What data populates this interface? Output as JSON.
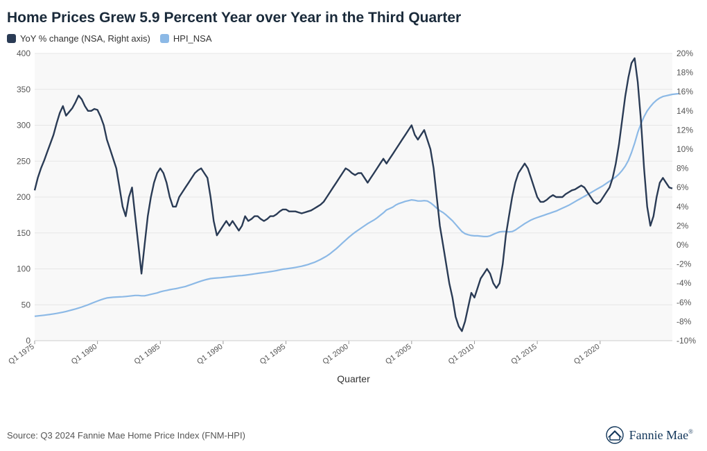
{
  "title": "Home Prices Grew 5.9 Percent Year over Year in the Third Quarter",
  "legend": {
    "series_a": {
      "label": "YoY % change (NSA, Right axis)",
      "color": "#2a3b55"
    },
    "series_b": {
      "label": "HPI_NSA",
      "color": "#8cb9e6"
    }
  },
  "chart": {
    "type": "line-dual-axis",
    "background_color": "#f8f8f8",
    "grid_color": "#e6e6e6",
    "font_color": "#555555",
    "x_axis": {
      "title": "Quarter",
      "ticks": [
        "Q1 1975",
        "Q1 1980",
        "Q1 1985",
        "Q1 1990",
        "Q1 1995",
        "Q1 2000",
        "Q1 2005",
        "Q1 2010",
        "Q1 2015",
        "Q1 2020"
      ],
      "min_idx": 0,
      "max_idx": 199
    },
    "y_left": {
      "min": 0,
      "max": 400,
      "step": 50,
      "ticks": [
        "0",
        "50",
        "100",
        "150",
        "200",
        "250",
        "300",
        "350",
        "400"
      ]
    },
    "y_right": {
      "min": -10,
      "max": 20,
      "step": 2,
      "ticks": [
        "-10%",
        "-8%",
        "-6%",
        "-4%",
        "-2%",
        "0%",
        "2%",
        "4%",
        "6%",
        "8%",
        "10%",
        "12%",
        "14%",
        "16%",
        "18%",
        "20%"
      ]
    },
    "series_yoy": {
      "color": "#2a3b55",
      "stroke_width": 2.4,
      "axis": "right",
      "values": [
        5.7,
        7.0,
        8.0,
        8.8,
        9.7,
        10.6,
        11.5,
        12.7,
        13.8,
        14.5,
        13.5,
        13.9,
        14.3,
        14.9,
        15.6,
        15.2,
        14.5,
        14.0,
        14.0,
        14.2,
        14.1,
        13.4,
        12.5,
        11.0,
        10.0,
        9.0,
        8.0,
        6.0,
        4.0,
        3.0,
        5.0,
        6.0,
        3.0,
        0.0,
        -3.0,
        0.0,
        3.0,
        5.0,
        6.5,
        7.5,
        8.0,
        7.5,
        6.5,
        5.0,
        4.0,
        4.0,
        5.0,
        5.5,
        6.0,
        6.5,
        7.0,
        7.5,
        7.8,
        8.0,
        7.5,
        7.0,
        5.0,
        2.5,
        1.0,
        1.5,
        2.0,
        2.5,
        2.0,
        2.5,
        2.0,
        1.5,
        2.0,
        3.0,
        2.5,
        2.7,
        3.0,
        3.0,
        2.7,
        2.5,
        2.7,
        3.0,
        3.0,
        3.2,
        3.5,
        3.7,
        3.7,
        3.5,
        3.5,
        3.5,
        3.4,
        3.3,
        3.4,
        3.5,
        3.6,
        3.8,
        4.0,
        4.2,
        4.5,
        5.0,
        5.5,
        6.0,
        6.5,
        7.0,
        7.5,
        8.0,
        7.8,
        7.5,
        7.3,
        7.5,
        7.5,
        7.0,
        6.5,
        7.0,
        7.5,
        8.0,
        8.5,
        9.0,
        8.5,
        9.0,
        9.5,
        10.0,
        10.5,
        11.0,
        11.5,
        12.0,
        12.5,
        11.5,
        11.0,
        11.5,
        12.0,
        11.0,
        10.0,
        8.0,
        5.0,
        2.0,
        0.0,
        -2.0,
        -4.0,
        -5.5,
        -7.5,
        -8.5,
        -9.0,
        -8.0,
        -6.5,
        -5.0,
        -5.5,
        -4.5,
        -3.5,
        -3.0,
        -2.5,
        -3.0,
        -4.0,
        -4.5,
        -4.0,
        -2.0,
        1.0,
        3.0,
        5.0,
        6.5,
        7.5,
        8.0,
        8.5,
        8.0,
        7.0,
        6.0,
        5.0,
        4.5,
        4.5,
        4.7,
        5.0,
        5.2,
        5.0,
        5.0,
        5.0,
        5.3,
        5.5,
        5.7,
        5.8,
        6.0,
        6.2,
        6.0,
        5.5,
        5.0,
        4.5,
        4.3,
        4.5,
        5.0,
        5.5,
        6.0,
        7.0,
        8.5,
        10.5,
        13.0,
        15.5,
        17.5,
        19.0,
        19.5,
        17.0,
        13.0,
        8.0,
        4.0,
        2.0,
        3.0,
        5.0,
        6.5,
        7.0,
        6.5,
        6.0,
        5.9
      ]
    },
    "series_hpi": {
      "color": "#8cb9e6",
      "stroke_width": 2.2,
      "axis": "left",
      "values": [
        34,
        34.5,
        35,
        35.5,
        36,
        36.6,
        37.3,
        38,
        38.8,
        39.7,
        40.7,
        41.8,
        43,
        44.2,
        45.5,
        46.9,
        48.4,
        50,
        51.8,
        53.5,
        55.2,
        56.8,
        58.3,
        59.5,
        60,
        60.5,
        60.8,
        61,
        61.2,
        61.5,
        62,
        62.5,
        63,
        63,
        62.5,
        62.5,
        63.5,
        64.5,
        65.5,
        66.5,
        68,
        69.2,
        70,
        71,
        71.8,
        72.5,
        73.5,
        74.5,
        75.5,
        77,
        78.5,
        80,
        81.5,
        83,
        84.3,
        85.5,
        86.5,
        87,
        87.3,
        87.6,
        88,
        88.5,
        89,
        89.5,
        90,
        90.4,
        90.7,
        91.2,
        91.8,
        92.4,
        93,
        93.7,
        94.3,
        94.9,
        95.5,
        96.1,
        96.8,
        97.6,
        98.5,
        99.5,
        100,
        100.6,
        101.3,
        102,
        102.8,
        103.7,
        104.8,
        106,
        107.5,
        109,
        111,
        113,
        115.5,
        118,
        121,
        124.5,
        128,
        132,
        136,
        140,
        144,
        147.5,
        151,
        154,
        157,
        160,
        163,
        165.5,
        168,
        171,
        174.5,
        178,
        182,
        184,
        186,
        189,
        191,
        192.5,
        194,
        195,
        196,
        195.5,
        194.5,
        194.5,
        195,
        194.5,
        192,
        188.5,
        184.5,
        181,
        178.5,
        175,
        171,
        167,
        162,
        157,
        152,
        149,
        147.5,
        146.5,
        146,
        146,
        145.5,
        145,
        145,
        146,
        148,
        150,
        151.5,
        152,
        152,
        151.5,
        152,
        154,
        157,
        160,
        163,
        165.5,
        168,
        170,
        171.5,
        173,
        174.5,
        176,
        177.5,
        179,
        180.5,
        182.5,
        184.5,
        186.5,
        188.5,
        191,
        193.5,
        196,
        198.5,
        201,
        203.5,
        206,
        208.5,
        211,
        213.5,
        216,
        219,
        222,
        225,
        228,
        232,
        237,
        243,
        251,
        262,
        275,
        290,
        302,
        312,
        320,
        326,
        331,
        335,
        338,
        340,
        341,
        342,
        343,
        343.5,
        344
      ]
    }
  },
  "footer": {
    "source": "Source: Q3 2024 Fannie Mae Home Price Index (FNM-HPI)",
    "brand_text": "Fannie Mae"
  }
}
